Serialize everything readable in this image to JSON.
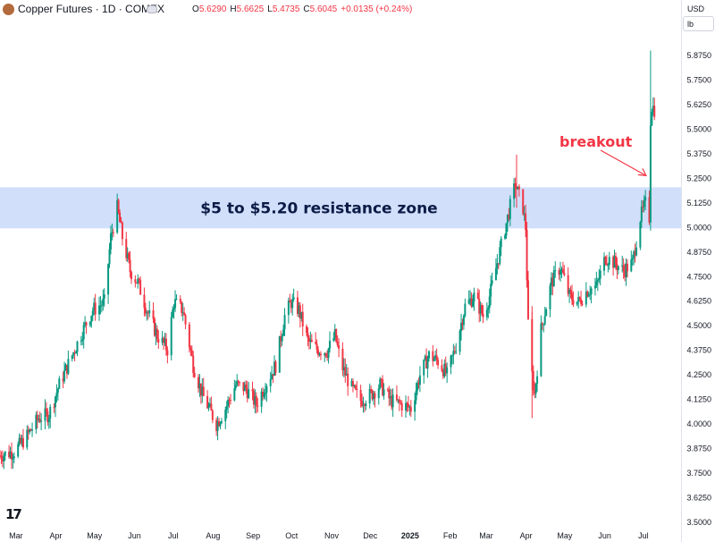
{
  "header": {
    "title": "Copper Futures · 1D · COMEX",
    "open_label": "O",
    "open": "5.6290",
    "high_label": "H",
    "high": "5.6625",
    "low_label": "L",
    "low": "5.4735",
    "close_label": "C",
    "close": "5.6045",
    "change": "+0.0135 (+0.24%)"
  },
  "price_scale": {
    "currency": "USD",
    "unit": "lb"
  },
  "colors": {
    "up": "#089981",
    "down": "#f23645",
    "zone": "#c9d9f9",
    "annotation": "#f23645",
    "zone_text": "#0b1b46"
  },
  "chart_data": {
    "type": "candlestick",
    "title": "Copper Futures · 1D · COMEX",
    "y_ticks": [
      "5.8750",
      "5.7500",
      "5.6250",
      "5.5000",
      "5.3750",
      "5.2500",
      "5.1250",
      "5.0000",
      "4.8750",
      "4.7500",
      "4.6250",
      "4.5000",
      "4.3750",
      "4.2500",
      "4.1250",
      "4.0000",
      "3.8750",
      "3.7500",
      "3.6250",
      "3.5000"
    ],
    "ylim": [
      3.5,
      5.95
    ],
    "x_tick_labels": [
      "Mar",
      "Apr",
      "May",
      "Jun",
      "Jul",
      "Aug",
      "Sep",
      "Oct",
      "Nov",
      "Dec",
      "2025",
      "Feb",
      "Mar",
      "Apr",
      "May",
      "Jun",
      "Jul"
    ],
    "x_tick_dates": [
      "2024-03-01",
      "2024-04-01",
      "2024-05-01",
      "2024-06-01",
      "2024-07-01",
      "2024-08-01",
      "2024-09-01",
      "2024-10-01",
      "2024-11-01",
      "2024-12-01",
      "2025-01-01",
      "2025-02-01",
      "2025-03-01",
      "2025-04-01",
      "2025-05-01",
      "2025-06-01",
      "2025-07-01"
    ],
    "xlim": [
      "2024-02-19",
      "2025-07-15"
    ],
    "price_path": [
      [
        "2024-02-19",
        3.84
      ],
      [
        "2024-03-01",
        3.86
      ],
      [
        "2024-03-10",
        3.93
      ],
      [
        "2024-03-20",
        4.03
      ],
      [
        "2024-03-28",
        4.05
      ],
      [
        "2024-04-05",
        4.2
      ],
      [
        "2024-04-15",
        4.35
      ],
      [
        "2024-04-25",
        4.5
      ],
      [
        "2024-05-01",
        4.58
      ],
      [
        "2024-05-10",
        4.62
      ],
      [
        "2024-05-15",
        4.95
      ],
      [
        "2024-05-20",
        5.1
      ],
      [
        "2024-05-24",
        4.95
      ],
      [
        "2024-05-30",
        4.78
      ],
      [
        "2024-06-05",
        4.72
      ],
      [
        "2024-06-12",
        4.58
      ],
      [
        "2024-06-20",
        4.45
      ],
      [
        "2024-06-28",
        4.38
      ],
      [
        "2024-07-03",
        4.62
      ],
      [
        "2024-07-10",
        4.58
      ],
      [
        "2024-07-18",
        4.3
      ],
      [
        "2024-07-25",
        4.15
      ],
      [
        "2024-08-05",
        4.0
      ],
      [
        "2024-08-12",
        4.08
      ],
      [
        "2024-08-20",
        4.2
      ],
      [
        "2024-08-28",
        4.18
      ],
      [
        "2024-09-05",
        4.1
      ],
      [
        "2024-09-12",
        4.2
      ],
      [
        "2024-09-20",
        4.3
      ],
      [
        "2024-09-27",
        4.55
      ],
      [
        "2024-10-02",
        4.62
      ],
      [
        "2024-10-08",
        4.58
      ],
      [
        "2024-10-15",
        4.42
      ],
      [
        "2024-10-22",
        4.38
      ],
      [
        "2024-10-30",
        4.37
      ],
      [
        "2024-11-05",
        4.45
      ],
      [
        "2024-11-10",
        4.3
      ],
      [
        "2024-11-18",
        4.18
      ],
      [
        "2024-11-25",
        4.12
      ],
      [
        "2024-12-03",
        4.15
      ],
      [
        "2024-12-10",
        4.2
      ],
      [
        "2024-12-18",
        4.12
      ],
      [
        "2024-12-26",
        4.1
      ],
      [
        "2025-01-03",
        4.08
      ],
      [
        "2025-01-10",
        4.25
      ],
      [
        "2025-01-17",
        4.35
      ],
      [
        "2025-01-24",
        4.32
      ],
      [
        "2025-01-31",
        4.25
      ],
      [
        "2025-02-07",
        4.4
      ],
      [
        "2025-02-14",
        4.6
      ],
      [
        "2025-02-21",
        4.65
      ],
      [
        "2025-02-28",
        4.55
      ],
      [
        "2025-03-05",
        4.65
      ],
      [
        "2025-03-12",
        4.85
      ],
      [
        "2025-03-19",
        5.05
      ],
      [
        "2025-03-25",
        5.22
      ],
      [
        "2025-03-31",
        5.1
      ],
      [
        "2025-04-02",
        5.0
      ],
      [
        "2025-04-04",
        4.5
      ],
      [
        "2025-04-07",
        4.25
      ],
      [
        "2025-04-09",
        4.15
      ],
      [
        "2025-04-14",
        4.48
      ],
      [
        "2025-04-22",
        4.72
      ],
      [
        "2025-04-29",
        4.8
      ],
      [
        "2025-05-06",
        4.65
      ],
      [
        "2025-05-13",
        4.62
      ],
      [
        "2025-05-20",
        4.68
      ],
      [
        "2025-05-27",
        4.7
      ],
      [
        "2025-06-03",
        4.85
      ],
      [
        "2025-06-10",
        4.82
      ],
      [
        "2025-06-17",
        4.78
      ],
      [
        "2025-06-24",
        4.82
      ],
      [
        "2025-06-30",
        5.05
      ],
      [
        "2025-07-04",
        5.12
      ],
      [
        "2025-07-07",
        5.05
      ],
      [
        "2025-07-08",
        5.55
      ],
      [
        "2025-07-09",
        5.62
      ],
      [
        "2025-07-11",
        5.6
      ]
    ],
    "zone": {
      "low": 5.0,
      "high": 5.2,
      "label": "$5 to $5.20 resistance zone"
    },
    "annotation": {
      "text": "breakout",
      "arrow_to_date": "2025-07-08",
      "arrow_to_price": 5.25
    }
  }
}
